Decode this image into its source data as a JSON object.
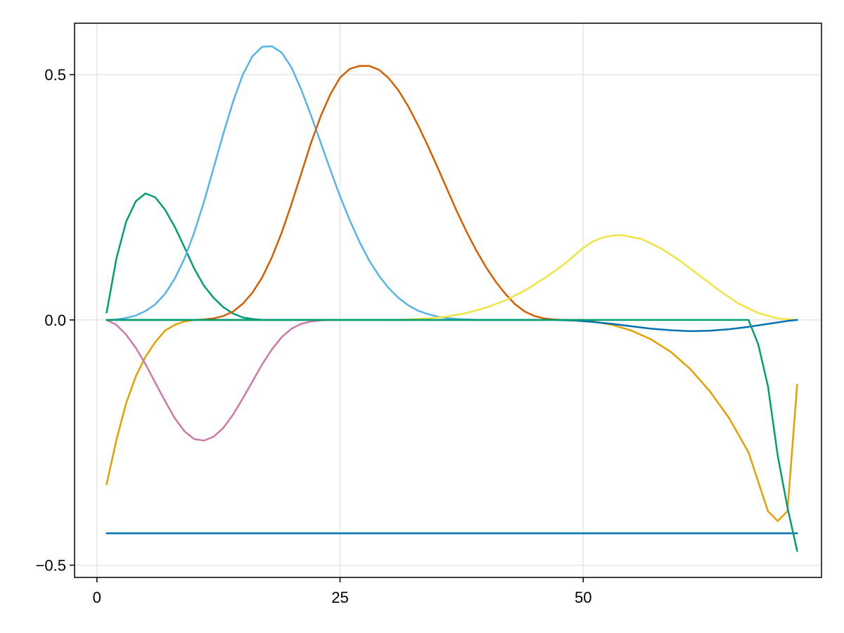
{
  "chart_data": {
    "type": "line",
    "title": "",
    "xlabel": "",
    "ylabel": "",
    "xlim": [
      -2.3,
      74.5
    ],
    "ylim": [
      -0.525,
      0.605
    ],
    "xticks": [
      0,
      25,
      50
    ],
    "xtick_labels": [
      "0",
      "25",
      "50"
    ],
    "yticks": [
      -0.5,
      0.0,
      0.5
    ],
    "ytick_labels": [
      "−0.5",
      "0.0",
      "0.5"
    ],
    "grid": true,
    "legend": "none",
    "series": [
      {
        "color": "#0072b2",
        "x": [
          1,
          72
        ],
        "y": [
          -0.435,
          -0.435
        ]
      },
      {
        "color": "#e69f00",
        "x": [
          1,
          2,
          3,
          4,
          5,
          6,
          7,
          8,
          9,
          10,
          12,
          20,
          47,
          49,
          51,
          53,
          55,
          57,
          59,
          61,
          63,
          65,
          67,
          68,
          69,
          70,
          71,
          72
        ],
        "y": [
          -0.335,
          -0.245,
          -0.17,
          -0.115,
          -0.075,
          -0.045,
          -0.022,
          -0.01,
          -0.003,
          0.0,
          0.0,
          0.0,
          0.0,
          -0.001,
          -0.003,
          -0.01,
          -0.022,
          -0.04,
          -0.065,
          -0.1,
          -0.145,
          -0.2,
          -0.27,
          -0.33,
          -0.39,
          -0.41,
          -0.39,
          -0.132
        ]
      },
      {
        "color": "#009e73",
        "x": [
          1,
          2,
          3,
          4,
          5,
          6,
          7,
          8,
          9,
          10,
          11,
          12,
          13,
          14,
          15,
          16,
          17,
          20
        ],
        "y": [
          0.015,
          0.125,
          0.2,
          0.242,
          0.258,
          0.25,
          0.225,
          0.19,
          0.148,
          0.105,
          0.07,
          0.045,
          0.026,
          0.013,
          0.005,
          0.002,
          0.0,
          0.0
        ]
      },
      {
        "color": "#cc79a7",
        "x": [
          1,
          2,
          3,
          4,
          5,
          6,
          7,
          8,
          9,
          10,
          11,
          12,
          13,
          14,
          15,
          16,
          17,
          18,
          19,
          20,
          21,
          22,
          23,
          24
        ],
        "y": [
          0.0,
          -0.01,
          -0.03,
          -0.057,
          -0.09,
          -0.128,
          -0.165,
          -0.2,
          -0.227,
          -0.243,
          -0.246,
          -0.238,
          -0.22,
          -0.193,
          -0.16,
          -0.125,
          -0.09,
          -0.06,
          -0.035,
          -0.018,
          -0.008,
          -0.003,
          -0.001,
          0.0
        ]
      },
      {
        "color": "#56b4e9",
        "x": [
          1,
          2,
          3,
          4,
          5,
          6,
          7,
          8,
          9,
          10,
          11,
          12,
          13,
          14,
          15,
          16,
          17,
          18,
          19,
          20,
          21,
          22,
          23,
          24,
          25,
          26,
          27,
          28,
          29,
          30,
          31,
          32,
          33,
          34,
          35,
          36,
          37,
          38,
          39,
          40,
          41,
          42,
          43,
          44,
          45
        ],
        "y": [
          0.0,
          0.001,
          0.004,
          0.009,
          0.018,
          0.032,
          0.053,
          0.084,
          0.125,
          0.178,
          0.24,
          0.31,
          0.38,
          0.445,
          0.5,
          0.538,
          0.557,
          0.558,
          0.545,
          0.515,
          0.47,
          0.418,
          0.362,
          0.306,
          0.252,
          0.203,
          0.159,
          0.121,
          0.09,
          0.065,
          0.045,
          0.03,
          0.019,
          0.012,
          0.007,
          0.004,
          0.002,
          0.001,
          0.0,
          0.0,
          0.0,
          0.0,
          0.0,
          0.0,
          0.0
        ]
      },
      {
        "color": "#d55e00",
        "x": [
          1,
          10,
          11,
          12,
          13,
          14,
          15,
          16,
          17,
          18,
          19,
          20,
          21,
          22,
          23,
          24,
          25,
          26,
          27,
          28,
          29,
          30,
          31,
          32,
          33,
          34,
          35,
          36,
          37,
          38,
          39,
          40,
          41,
          42,
          43,
          44,
          45,
          46,
          47,
          48,
          49,
          50
        ],
        "y": [
          0.0,
          0.0,
          0.001,
          0.003,
          0.008,
          0.017,
          0.033,
          0.056,
          0.087,
          0.128,
          0.178,
          0.236,
          0.298,
          0.36,
          0.415,
          0.46,
          0.494,
          0.512,
          0.518,
          0.518,
          0.51,
          0.493,
          0.468,
          0.436,
          0.398,
          0.356,
          0.312,
          0.267,
          0.222,
          0.18,
          0.142,
          0.108,
          0.078,
          0.053,
          0.032,
          0.017,
          0.008,
          0.003,
          0.001,
          0.0,
          0.0,
          0.0
        ]
      },
      {
        "color": "#f0e442",
        "x": [
          1,
          30,
          32,
          34,
          36,
          38,
          40,
          42,
          44,
          46,
          48,
          49,
          50,
          51,
          52,
          53,
          54,
          56,
          58,
          60,
          62,
          64,
          66,
          68,
          70,
          72
        ],
        "y": [
          0.0,
          0.0,
          0.001,
          0.003,
          0.007,
          0.014,
          0.025,
          0.04,
          0.06,
          0.085,
          0.113,
          0.13,
          0.147,
          0.16,
          0.168,
          0.172,
          0.173,
          0.165,
          0.146,
          0.12,
          0.09,
          0.06,
          0.033,
          0.014,
          0.003,
          0.0
        ]
      },
      {
        "color": "#0072b2",
        "x": [
          1,
          47,
          49,
          51,
          53,
          55,
          57,
          59,
          61,
          63,
          65,
          67,
          69,
          71,
          72
        ],
        "y": [
          0.0,
          0.0,
          -0.001,
          -0.004,
          -0.008,
          -0.013,
          -0.018,
          -0.021,
          -0.023,
          -0.022,
          -0.019,
          -0.014,
          -0.008,
          -0.002,
          0.0
        ]
      },
      {
        "color": "#009e73",
        "x": [
          1,
          67,
          68,
          69,
          70,
          71,
          72
        ],
        "y": [
          0.0,
          0.0,
          -0.05,
          -0.135,
          -0.277,
          -0.382,
          -0.471
        ]
      }
    ]
  }
}
